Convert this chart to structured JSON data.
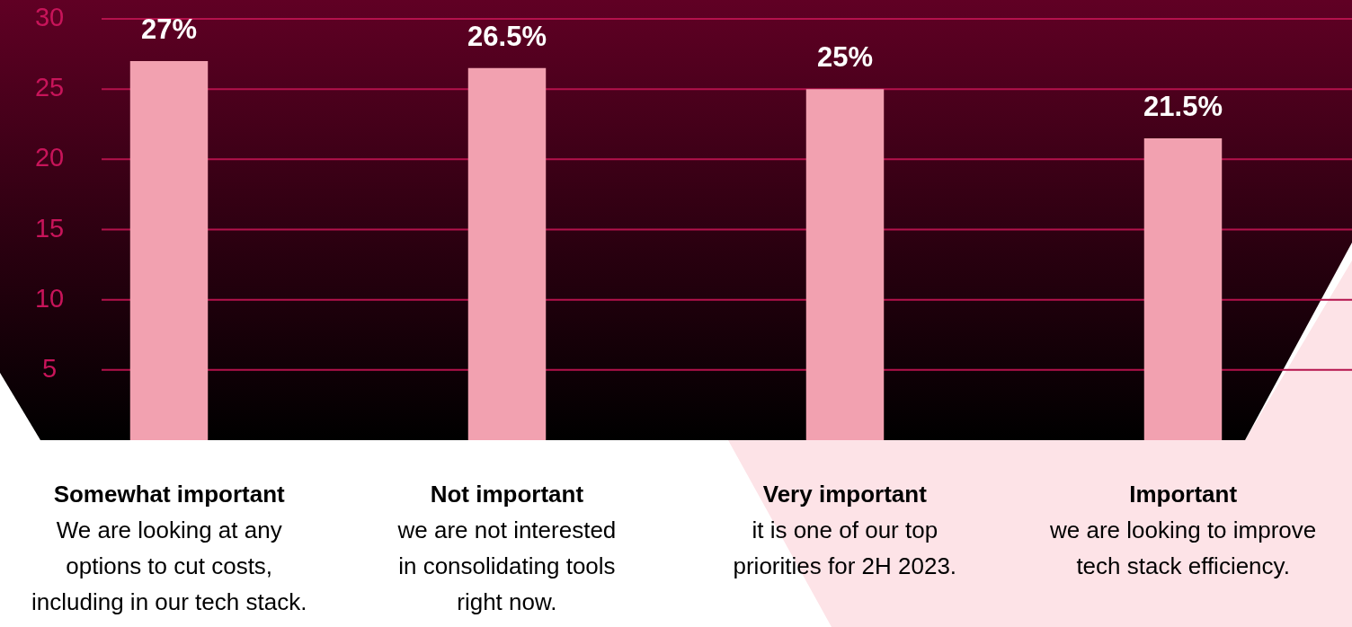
{
  "chart_data": {
    "type": "bar",
    "categories": [
      "Somewhat important\nWe are looking at any\noptions to cut costs,\nincluding in our tech stack.",
      "Not important\nwe are not interested\nin consolidating tools\nright now.",
      "Very important\nit is one of our top\npriorities for 2H 2023.",
      "Important\nwe are looking to improve\ntech stack efficiency."
    ],
    "values": [
      27,
      26.5,
      25,
      21.5
    ],
    "value_labels": [
      "27%",
      "26.5%",
      "25%",
      "21.5%"
    ],
    "color": "#f2a1b0",
    "ylim": [
      0,
      30
    ],
    "yticks": [
      5,
      10,
      15,
      20,
      25,
      30
    ],
    "grid": "y",
    "legend": false
  }
}
